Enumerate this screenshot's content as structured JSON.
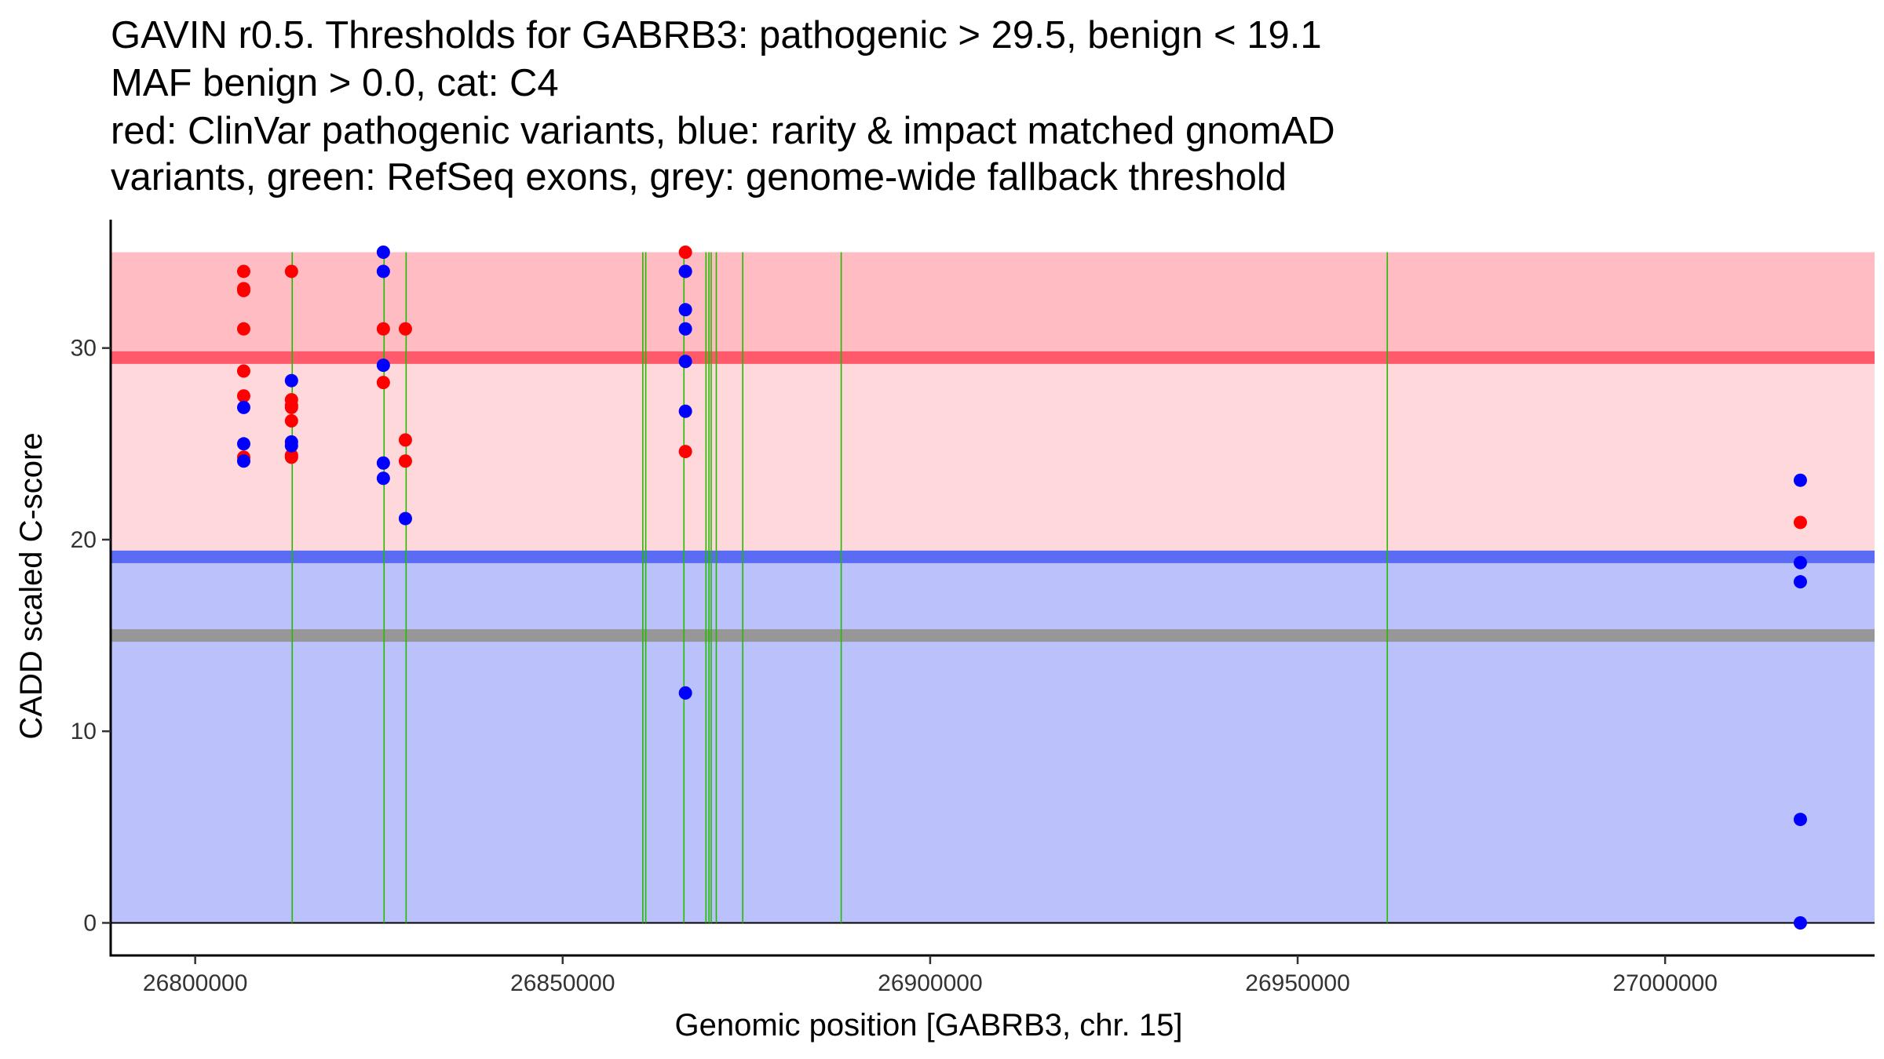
{
  "chart_data": {
    "type": "scatter",
    "title_lines": [
      "GAVIN r0.5. Thresholds for GABRB3: pathogenic > 29.5, benign < 19.1",
      "MAF benign > 0.0, cat: C4",
      "red: ClinVar pathogenic variants, blue: rarity & impact matched gnomAD",
      "variants, green: RefSeq exons, grey: genome-wide fallback threshold"
    ],
    "xlabel": "Genomic position [GABRB3, chr. 15]",
    "ylabel": "CADD scaled C-score",
    "xlim": [
      26788500,
      27028500
    ],
    "ylim": [
      -1.7,
      36.7
    ],
    "xticks": [
      26800000,
      26850000,
      26900000,
      26950000,
      27000000
    ],
    "xtick_labels": [
      "26800000",
      "26850000",
      "26900000",
      "26950000",
      "27000000"
    ],
    "yticks": [
      0,
      10,
      20,
      30
    ],
    "ytick_labels": [
      "0",
      "10",
      "20",
      "30"
    ],
    "data_xrange": [
      26788500,
      27028500
    ],
    "regions": [
      {
        "name": "pathogenic-zone-upper",
        "y0": 29.5,
        "y1": 35,
        "color": "#ffbcc2"
      },
      {
        "name": "pathogenic-zone-lower",
        "y0": 19.1,
        "y1": 29.5,
        "color": "#ffd8dc"
      },
      {
        "name": "benign-zone",
        "y0": 0,
        "y1": 19.1,
        "color": "#bbc2fb"
      }
    ],
    "threshold_lines": [
      {
        "name": "pathogenic-threshold-line",
        "label": "pathogenic",
        "y": 29.5,
        "color": "#ff5a6b"
      },
      {
        "name": "benign-threshold-line",
        "label": "benign",
        "y": 19.1,
        "color": "#5a6cf4"
      },
      {
        "name": "fallback-threshold-line",
        "label": "genome-wide fallback",
        "y": 15.0,
        "color": "#979797"
      }
    ],
    "exons": [
      26813200,
      26825700,
      26828700,
      26860900,
      26861300,
      26866500,
      26869500,
      26869900,
      26870200,
      26870900,
      26874500,
      26887900,
      26962200
    ],
    "series": [
      {
        "name": "ClinVar pathogenic",
        "color": "#ff0000",
        "points": [
          [
            26806600,
            34
          ],
          [
            26806600,
            33.1
          ],
          [
            26806600,
            33
          ],
          [
            26806600,
            31
          ],
          [
            26806600,
            28.8
          ],
          [
            26806600,
            27.5
          ],
          [
            26806600,
            24.3
          ],
          [
            26813100,
            34
          ],
          [
            26813100,
            27.3
          ],
          [
            26813100,
            27
          ],
          [
            26813100,
            26.9
          ],
          [
            26813100,
            26.2
          ],
          [
            26813100,
            24.4
          ],
          [
            26813100,
            24.3
          ],
          [
            26825600,
            31
          ],
          [
            26825600,
            28.2
          ],
          [
            26828600,
            31
          ],
          [
            26828600,
            25.2
          ],
          [
            26828600,
            24.1
          ],
          [
            26866700,
            35
          ],
          [
            26866700,
            34
          ],
          [
            26866700,
            24.6
          ],
          [
            27018400,
            20.9
          ]
        ]
      },
      {
        "name": "gnomAD matched",
        "color": "#0000ff",
        "points": [
          [
            26806600,
            26.9
          ],
          [
            26806600,
            25
          ],
          [
            26806600,
            24.1
          ],
          [
            26813100,
            28.3
          ],
          [
            26813100,
            25.1
          ],
          [
            26813100,
            24.9
          ],
          [
            26825600,
            35
          ],
          [
            26825600,
            34
          ],
          [
            26825600,
            29.1
          ],
          [
            26825600,
            24
          ],
          [
            26825600,
            23.2
          ],
          [
            26828600,
            21.1
          ],
          [
            26866700,
            34
          ],
          [
            26866700,
            32
          ],
          [
            26866700,
            31
          ],
          [
            26866700,
            29.3
          ],
          [
            26866700,
            26.7
          ],
          [
            26866700,
            12
          ],
          [
            27018400,
            23.1
          ],
          [
            27018400,
            18.8
          ],
          [
            27018400,
            17.8
          ],
          [
            27018400,
            5.4
          ],
          [
            27018400,
            0
          ]
        ]
      }
    ]
  }
}
